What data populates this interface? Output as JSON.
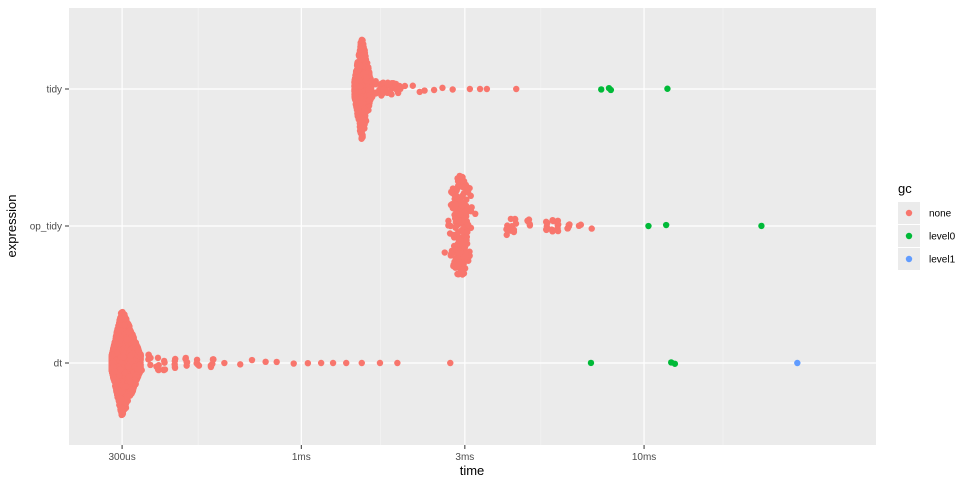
{
  "chart_data": {
    "type": "scatter",
    "subtype": "beeswarm",
    "xlabel": "time",
    "ylabel": "expression",
    "x_scale": "log10",
    "x_unit": "seconds",
    "xlim": [
      0.00021,
      0.0475
    ],
    "x_ticks": [
      {
        "value": 0.0003,
        "label": "300us"
      },
      {
        "value": 0.001,
        "label": "1ms"
      },
      {
        "value": 0.003,
        "label": "3ms"
      },
      {
        "value": 0.01,
        "label": "10ms"
      }
    ],
    "x_minor_gridlines": [
      0.0005,
      0.0017,
      0.005,
      0.017
    ],
    "categories": [
      "dt",
      "op_tidy",
      "tidy"
    ],
    "grid": true,
    "legend": {
      "title": "gc",
      "position": "right",
      "entries": [
        {
          "label": "none",
          "color": "#F8766D"
        },
        {
          "label": "level0",
          "color": "#00BA38"
        },
        {
          "label": "level1",
          "color": "#619CFF"
        }
      ]
    },
    "series": [
      {
        "name": "tidy",
        "core": {
          "x_min": 0.00143,
          "x_peak": 0.0015,
          "x_max": 0.0016,
          "count": 600
        },
        "tail_none": [
          0.0016,
          0.00165,
          0.0017,
          0.00175,
          0.0018,
          0.00185,
          0.0019,
          0.00195,
          0.002,
          0.0021,
          0.0022,
          0.0023,
          0.00245,
          0.0026,
          0.00275,
          0.0031,
          0.0033,
          0.0035,
          0.0042
        ],
        "level0": [
          0.0075,
          0.0079,
          0.008,
          0.0117
        ],
        "level1": []
      },
      {
        "name": "op_tidy",
        "core": {
          "x_min": 0.0024,
          "x_peak": 0.0029,
          "x_max": 0.0038,
          "count": 200
        },
        "tail_none": [
          0.004,
          0.0041,
          0.0042,
          0.0046,
          0.0052,
          0.0054,
          0.0056,
          0.006,
          0.0064,
          0.0065,
          0.007
        ],
        "level0": [
          0.0103,
          0.0116,
          0.022
        ],
        "level1": []
      },
      {
        "name": "dt",
        "core": {
          "x_min": 0.00028,
          "x_peak": 0.0003,
          "x_max": 0.00034,
          "count": 1500
        },
        "tail_none": [
          0.00034,
          0.00036,
          0.00038,
          0.0004,
          0.00043,
          0.00046,
          0.0005,
          0.00055,
          0.0006,
          0.00066,
          0.00072,
          0.00078,
          0.00085,
          0.00095,
          0.00105,
          0.00115,
          0.00125,
          0.00135,
          0.0015,
          0.0017,
          0.0019,
          0.0027
        ],
        "level0": [
          0.007,
          0.012,
          0.0123
        ],
        "level1": [
          0.028
        ]
      }
    ]
  }
}
